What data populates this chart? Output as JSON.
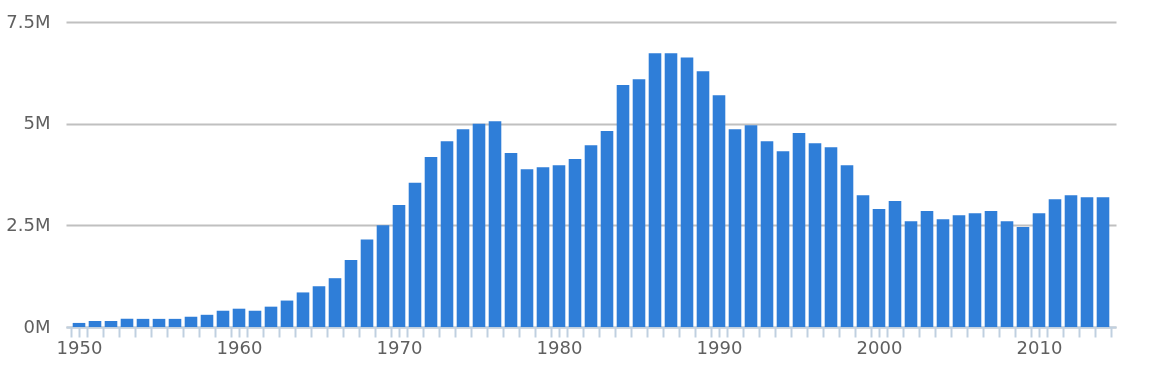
{
  "chart_data": {
    "type": "bar",
    "x": [
      1950,
      1951,
      1952,
      1953,
      1954,
      1955,
      1956,
      1957,
      1958,
      1959,
      1960,
      1961,
      1962,
      1963,
      1964,
      1965,
      1966,
      1967,
      1968,
      1969,
      1970,
      1971,
      1972,
      1973,
      1974,
      1975,
      1976,
      1977,
      1978,
      1979,
      1980,
      1981,
      1982,
      1983,
      1984,
      1985,
      1986,
      1987,
      1988,
      1989,
      1990,
      1991,
      1992,
      1993,
      1994,
      1995,
      1996,
      1997,
      1998,
      1999,
      2000,
      2001,
      2002,
      2003,
      2004,
      2005,
      2006,
      2007,
      2008,
      2009,
      2010,
      2011,
      2012,
      2013,
      2014
    ],
    "values": [
      0.1,
      0.15,
      0.15,
      0.2,
      0.2,
      0.2,
      0.2,
      0.25,
      0.3,
      0.4,
      0.45,
      0.4,
      0.5,
      0.65,
      0.85,
      1.0,
      1.2,
      1.65,
      2.15,
      2.5,
      3.0,
      3.55,
      4.18,
      4.57,
      4.86,
      5.0,
      5.06,
      4.28,
      3.88,
      3.93,
      3.98,
      4.13,
      4.47,
      4.82,
      5.95,
      6.09,
      6.73,
      6.73,
      6.63,
      6.29,
      5.7,
      4.86,
      4.96,
      4.57,
      4.32,
      4.77,
      4.52,
      4.42,
      3.98,
      3.24,
      2.9,
      3.1,
      2.6,
      2.85,
      2.65,
      2.75,
      2.8,
      2.85,
      2.6,
      2.46,
      2.8,
      3.14,
      3.24,
      3.19,
      3.19
    ],
    "color": "#2f7ed8",
    "xlim": [
      1949.5,
      2014.5
    ],
    "xticks": [
      1950,
      1960,
      1970,
      1980,
      1990,
      2000,
      2010,
      {
        "value": 1949.5,
        "label": null
      },
      {
        "value": 1950.5,
        "label": null
      },
      {
        "value": 1951.5,
        "label": null
      },
      {
        "value": 1952.5,
        "label": null
      },
      {
        "value": 1953.5,
        "label": null
      },
      {
        "value": 1954.5,
        "label": null
      },
      {
        "value": 1955.5,
        "label": null
      },
      {
        "value": 1956.5,
        "label": null
      },
      {
        "value": 1957.5,
        "label": null
      },
      {
        "value": 1958.5,
        "label": null
      },
      {
        "value": 1959.5,
        "label": null
      },
      {
        "value": 1960.5,
        "label": null
      },
      {
        "value": 1961.5,
        "label": null
      },
      {
        "value": 1962.5,
        "label": null
      },
      {
        "value": 1963.5,
        "label": null
      },
      {
        "value": 1964.5,
        "label": null
      },
      {
        "value": 1965.5,
        "label": null
      },
      {
        "value": 1966.5,
        "label": null
      },
      {
        "value": 1967.5,
        "label": null
      },
      {
        "value": 1968.5,
        "label": null
      },
      {
        "value": 1969.5,
        "label": null
      },
      {
        "value": 1970.5,
        "label": null
      },
      {
        "value": 1971.5,
        "label": null
      },
      {
        "value": 1972.5,
        "label": null
      },
      {
        "value": 1973.5,
        "label": null
      },
      {
        "value": 1974.5,
        "label": null
      },
      {
        "value": 1975.5,
        "label": null
      },
      {
        "value": 1976.5,
        "label": null
      },
      {
        "value": 1977.5,
        "label": null
      },
      {
        "value": 1978.5,
        "label": null
      },
      {
        "value": 1979.5,
        "label": null
      },
      {
        "value": 1980.5,
        "label": null
      },
      {
        "value": 1981.5,
        "label": null
      },
      {
        "value": 1982.5,
        "label": null
      },
      {
        "value": 1983.5,
        "label": null
      },
      {
        "value": 1984.5,
        "label": null
      },
      {
        "value": 1985.5,
        "label": null
      },
      {
        "value": 1986.5,
        "label": null
      },
      {
        "value": 1987.5,
        "label": null
      },
      {
        "value": 1988.5,
        "label": null
      },
      {
        "value": 1989.5,
        "label": null
      },
      {
        "value": 1990.5,
        "label": null
      },
      {
        "value": 1991.5,
        "label": null
      },
      {
        "value": 1992.5,
        "label": null
      },
      {
        "value": 1993.5,
        "label": null
      },
      {
        "value": 1994.5,
        "label": null
      },
      {
        "value": 1995.5,
        "label": null
      },
      {
        "value": 1996.5,
        "label": null
      },
      {
        "value": 1997.5,
        "label": null
      },
      {
        "value": 1998.5,
        "label": null
      },
      {
        "value": 1999.5,
        "label": null
      },
      {
        "value": 2000.5,
        "label": null
      },
      {
        "value": 2001.5,
        "label": null
      },
      {
        "value": 2002.5,
        "label": null
      },
      {
        "value": 2003.5,
        "label": null
      },
      {
        "value": 2004.5,
        "label": null
      },
      {
        "value": 2005.5,
        "label": null
      },
      {
        "value": 2006.5,
        "label": null
      },
      {
        "value": 2007.5,
        "label": null
      },
      {
        "value": 2008.5,
        "label": null
      },
      {
        "value": 2009.5,
        "label": null
      },
      {
        "value": 2010.5,
        "label": null
      },
      {
        "value": 2011.5,
        "label": null
      },
      {
        "value": 2012.5,
        "label": null
      },
      {
        "value": 2013.5,
        "label": null
      },
      {
        "value": 2014.5,
        "label": null
      }
    ],
    "ylim": [
      0,
      7.5
    ],
    "yticks": [
      {
        "value": 0,
        "label": "0M"
      },
      {
        "value": 2.5,
        "label": "2.5M"
      },
      {
        "value": 5,
        "label": "5M"
      },
      {
        "value": 7.5,
        "label": "7.5M"
      }
    ],
    "grid": "y"
  }
}
